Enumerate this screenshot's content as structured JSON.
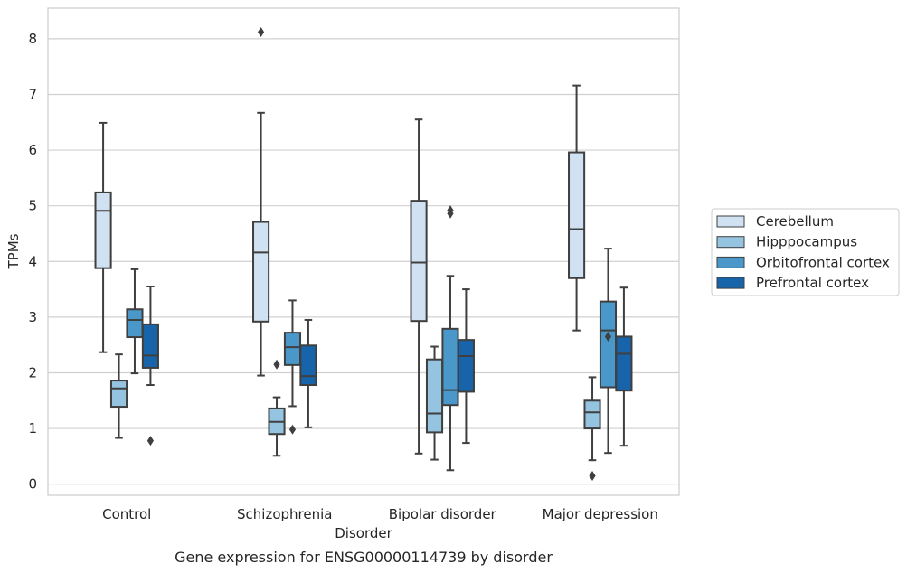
{
  "chart_data": {
    "type": "box",
    "caption": "Gene expression for ENSG00000114739 by disorder",
    "xlabel": "Disorder",
    "ylabel": "TPMs",
    "ylim": [
      -0.2,
      8.55
    ],
    "yticks": [
      0,
      1,
      2,
      3,
      4,
      5,
      6,
      7,
      8
    ],
    "grid": "horizontal",
    "legend_position": "right",
    "categories": [
      "Control",
      "Schizophrenia",
      "Bipolar disorder",
      "Major depression"
    ],
    "series": [
      {
        "name": "Cerebellum",
        "color": "#d0e1f2",
        "boxes": [
          {
            "whisker_low": 2.37,
            "q1": 3.88,
            "median": 4.91,
            "q3": 5.24,
            "whisker_high": 6.49,
            "outliers": []
          },
          {
            "whisker_low": 1.95,
            "q1": 2.92,
            "median": 4.16,
            "q3": 4.71,
            "whisker_high": 6.67,
            "outliers": [
              8.12
            ]
          },
          {
            "whisker_low": 0.55,
            "q1": 2.93,
            "median": 3.98,
            "q3": 5.09,
            "whisker_high": 6.55,
            "outliers": []
          },
          {
            "whisker_low": 2.76,
            "q1": 3.7,
            "median": 4.58,
            "q3": 5.96,
            "whisker_high": 7.16,
            "outliers": []
          }
        ]
      },
      {
        "name": "Hipppocampus",
        "color": "#94c4df",
        "boxes": [
          {
            "whisker_low": 0.83,
            "q1": 1.39,
            "median": 1.72,
            "q3": 1.86,
            "whisker_high": 2.33,
            "outliers": []
          },
          {
            "whisker_low": 0.51,
            "q1": 0.9,
            "median": 1.12,
            "q3": 1.36,
            "whisker_high": 1.56,
            "outliers": [
              2.15
            ]
          },
          {
            "whisker_low": 0.44,
            "q1": 0.93,
            "median": 1.27,
            "q3": 2.24,
            "whisker_high": 2.47,
            "outliers": []
          },
          {
            "whisker_low": 0.43,
            "q1": 1.0,
            "median": 1.29,
            "q3": 1.5,
            "whisker_high": 1.92,
            "outliers": [
              0.15
            ]
          }
        ]
      },
      {
        "name": "Orbitofrontal cortex",
        "color": "#4a98c9",
        "boxes": [
          {
            "whisker_low": 1.99,
            "q1": 2.64,
            "median": 2.95,
            "q3": 3.14,
            "whisker_high": 3.86,
            "outliers": []
          },
          {
            "whisker_low": 1.4,
            "q1": 2.14,
            "median": 2.46,
            "q3": 2.72,
            "whisker_high": 3.3,
            "outliers": [
              0.98
            ]
          },
          {
            "whisker_low": 0.25,
            "q1": 1.42,
            "median": 1.69,
            "q3": 2.79,
            "whisker_high": 3.74,
            "outliers": [
              4.86,
              4.92
            ]
          },
          {
            "whisker_low": 0.56,
            "q1": 1.74,
            "median": 2.76,
            "q3": 3.28,
            "whisker_high": 4.23,
            "outliers": [
              2.65
            ]
          }
        ]
      },
      {
        "name": "Prefrontal cortex",
        "color": "#1764ab",
        "boxes": [
          {
            "whisker_low": 1.78,
            "q1": 2.09,
            "median": 2.31,
            "q3": 2.87,
            "whisker_high": 3.55,
            "outliers": [
              0.78
            ]
          },
          {
            "whisker_low": 1.02,
            "q1": 1.78,
            "median": 1.94,
            "q3": 2.49,
            "whisker_high": 2.95,
            "outliers": []
          },
          {
            "whisker_low": 0.74,
            "q1": 1.66,
            "median": 2.3,
            "q3": 2.59,
            "whisker_high": 3.5,
            "outliers": []
          },
          {
            "whisker_low": 0.69,
            "q1": 1.68,
            "median": 2.34,
            "q3": 2.65,
            "whisker_high": 3.53,
            "outliers": []
          }
        ]
      }
    ]
  }
}
